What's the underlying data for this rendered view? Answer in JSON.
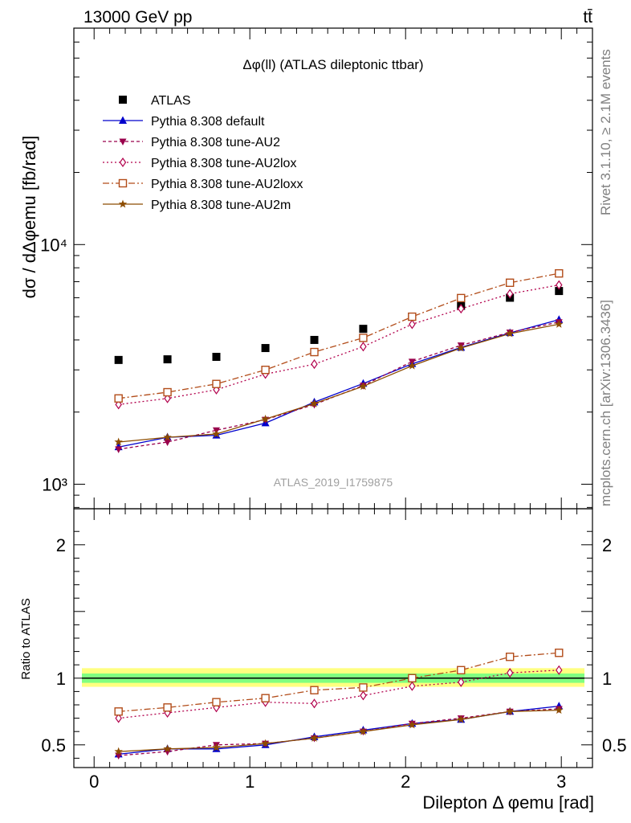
{
  "header": {
    "energy_label": "13000 GeV pp",
    "process_label": "tt̄",
    "rivet_label": "Rivet 3.1.10, ≥ 2.1M events",
    "mcplots_label": "mcplots.cern.ch [arXiv:1306.3436]",
    "analysis_label": "ATLAS_2019_I1759875"
  },
  "colors": {
    "atlas": "#000000",
    "default": "#0000cc",
    "au2": "#99004c",
    "au2lox": "#b2004c",
    "au2loxx": "#b24c19",
    "au2m": "#8c4c00",
    "band_inner": "#80ff80",
    "band_outer": "#ffff80"
  },
  "chart_data": [
    {
      "type": "line",
      "title": "Δφ(ll) (ATLAS dileptonic ttbar)",
      "ylabel": "dσ / dΔφemu [fb/rad]",
      "xlabel": "",
      "yscale": "log",
      "xlim": [
        -0.13,
        3.2
      ],
      "ylim": [
        790,
        80000
      ],
      "y_tick_labels": [
        "10³",
        "10⁴"
      ],
      "legend_position": "top-left",
      "x": [
        0.157,
        0.471,
        0.785,
        1.1,
        1.414,
        1.728,
        2.042,
        2.356,
        2.67,
        2.985
      ],
      "series": [
        {
          "name": "ATLAS",
          "marker": "square",
          "values": [
            3300,
            3320,
            3400,
            3700,
            4000,
            4450,
            5000,
            5550,
            6000,
            6400
          ]
        },
        {
          "name": "Pythia 8.308 default",
          "marker": "triangle-up",
          "line": "solid",
          "values": [
            1430,
            1570,
            1600,
            1800,
            2200,
            2630,
            3180,
            3720,
            4280,
            4860
          ]
        },
        {
          "name": "Pythia 8.308 tune-AU2",
          "marker": "triangle-down",
          "line": "dashed",
          "values": [
            1400,
            1500,
            1680,
            1860,
            2150,
            2580,
            3250,
            3800,
            4300,
            4750
          ]
        },
        {
          "name": "Pythia 8.308 tune-AU2lox",
          "marker": "diamond",
          "line": "dotted",
          "values": [
            2150,
            2280,
            2480,
            2880,
            3170,
            3750,
            4650,
            5400,
            6230,
            6780
          ]
        },
        {
          "name": "Pythia 8.308 tune-AU2loxx",
          "marker": "square-open",
          "line": "dashdot",
          "values": [
            2280,
            2420,
            2620,
            3000,
            3560,
            4080,
            5000,
            5980,
            6930,
            7580
          ]
        },
        {
          "name": "Pythia 8.308 tune-AU2m",
          "marker": "star",
          "line": "solid",
          "values": [
            1500,
            1570,
            1620,
            1870,
            2170,
            2560,
            3120,
            3700,
            4250,
            4650
          ]
        }
      ]
    },
    {
      "type": "line",
      "title": "",
      "ylabel": "Ratio to ATLAS",
      "xlabel": "Dilepton Δ φemu [rad]",
      "xlim": [
        -0.13,
        3.2
      ],
      "ylim": [
        0.33,
        2.27
      ],
      "y_ticks": [
        0.5,
        1,
        2
      ],
      "y_tick_labels": [
        "0.5",
        "1",
        "2"
      ],
      "x_ticks": [
        0,
        1,
        2,
        3
      ],
      "x_tick_labels": [
        "0",
        "1",
        "2",
        "3"
      ],
      "reference_band": {
        "inner": [
          0.965,
          1.035
        ],
        "outer": [
          0.935,
          1.075
        ]
      },
      "x": [
        0.157,
        0.471,
        0.785,
        1.1,
        1.414,
        1.728,
        2.042,
        2.356,
        2.67,
        2.985
      ],
      "series": [
        {
          "name": "Pythia 8.308 default",
          "values": [
            0.43,
            0.47,
            0.47,
            0.5,
            0.56,
            0.61,
            0.66,
            0.69,
            0.75,
            0.79
          ]
        },
        {
          "name": "Pythia 8.308 tune-AU2",
          "values": [
            0.42,
            0.45,
            0.5,
            0.51,
            0.55,
            0.6,
            0.66,
            0.7,
            0.75,
            0.77
          ]
        },
        {
          "name": "Pythia 8.308 tune-AU2lox",
          "values": [
            0.7,
            0.74,
            0.78,
            0.82,
            0.81,
            0.87,
            0.94,
            0.97,
            1.04,
            1.06
          ]
        },
        {
          "name": "Pythia 8.308 tune-AU2loxx",
          "values": [
            0.75,
            0.78,
            0.82,
            0.85,
            0.91,
            0.93,
            1.0,
            1.06,
            1.16,
            1.19
          ]
        },
        {
          "name": "Pythia 8.308 tune-AU2m",
          "values": [
            0.45,
            0.47,
            0.48,
            0.51,
            0.55,
            0.6,
            0.65,
            0.69,
            0.75,
            0.76
          ]
        }
      ]
    }
  ]
}
